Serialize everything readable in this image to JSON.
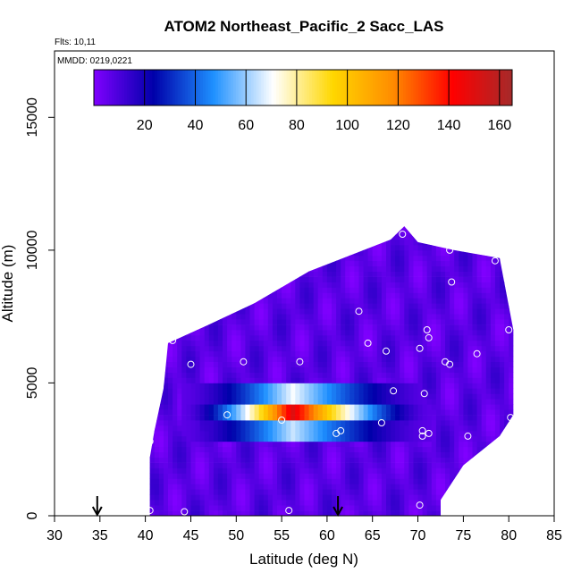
{
  "chart_data": {
    "type": "heatmap",
    "title": "ATOM2 Northeast_Pacific_2 Sacc_LAS",
    "flights_label": "Flts: 10,11",
    "dates_label": "MMDD: 0219,0221",
    "xlabel": "Latitude (deg N)",
    "ylabel": "Altitude (m)",
    "xlim": [
      30,
      85
    ],
    "ylim": [
      0,
      17500
    ],
    "x_ticks": [
      "30",
      "35",
      "40",
      "45",
      "50",
      "55",
      "60",
      "65",
      "70",
      "75",
      "80",
      "85"
    ],
    "y_ticks": [
      "0",
      "5000",
      "10000",
      "15000"
    ],
    "colorbar": {
      "range": [
        0,
        165
      ],
      "tick_labels": [
        "20",
        "40",
        "60",
        "80",
        "100",
        "120",
        "140",
        "160"
      ],
      "colors": [
        "#8000ff",
        "#0000aa",
        "#1e90ff",
        "#ffffff",
        "#ffd700",
        "#ff8c00",
        "#ff0000",
        "#a52a2a"
      ]
    },
    "arrows_latitude": [
      34.7,
      61.2
    ],
    "background_value": 7,
    "band_low": {
      "alt_range": [
        2900,
        3600
      ],
      "peak_value": 65
    },
    "band_mid": {
      "alt_range": [
        3600,
        4300
      ],
      "peak_value": 150
    },
    "band_high": {
      "alt_range": [
        4300,
        5100
      ],
      "peak_value": 70
    },
    "band_lat_range": [
      44,
      71
    ],
    "band_peak_lat": 56,
    "coverage_outline": [
      [
        40.5,
        0
      ],
      [
        72.5,
        0
      ],
      [
        72.5,
        600
      ],
      [
        75,
        1900
      ],
      [
        79,
        3000
      ],
      [
        80.5,
        3800
      ],
      [
        80.5,
        7000
      ],
      [
        79,
        9700
      ],
      [
        74,
        10000
      ],
      [
        70,
        10300
      ],
      [
        68.5,
        10900
      ],
      [
        67,
        10400
      ],
      [
        58,
        9200
      ],
      [
        52,
        8000
      ],
      [
        47,
        7200
      ],
      [
        42.5,
        6500
      ],
      [
        42,
        4800
      ],
      [
        41,
        3200
      ],
      [
        40.5,
        2200
      ]
    ],
    "sample_points": [
      [
        40.5,
        200
      ],
      [
        44.3,
        150
      ],
      [
        55.8,
        200
      ],
      [
        70.2,
        400
      ],
      [
        40.5,
        2800
      ],
      [
        49,
        3800
      ],
      [
        55,
        3600
      ],
      [
        61,
        3100
      ],
      [
        61.5,
        3200
      ],
      [
        66,
        3500
      ],
      [
        70.5,
        3200
      ],
      [
        70.5,
        3000
      ],
      [
        71.2,
        3100
      ],
      [
        75.5,
        3000
      ],
      [
        80.2,
        3700
      ],
      [
        70.7,
        4600
      ],
      [
        45,
        5700
      ],
      [
        50.8,
        5800
      ],
      [
        57,
        5800
      ],
      [
        73,
        5800
      ],
      [
        73.5,
        5700
      ],
      [
        76.5,
        6100
      ],
      [
        66.5,
        6200
      ],
      [
        64.5,
        6500
      ],
      [
        70.2,
        6300
      ],
      [
        71,
        7000
      ],
      [
        71.2,
        6700
      ],
      [
        80,
        7000
      ],
      [
        63.5,
        7700
      ],
      [
        43,
        6600
      ],
      [
        73.7,
        8800
      ],
      [
        78.5,
        9600
      ],
      [
        73.5,
        10000
      ],
      [
        68.3,
        10600
      ],
      [
        67.3,
        4700
      ]
    ]
  }
}
